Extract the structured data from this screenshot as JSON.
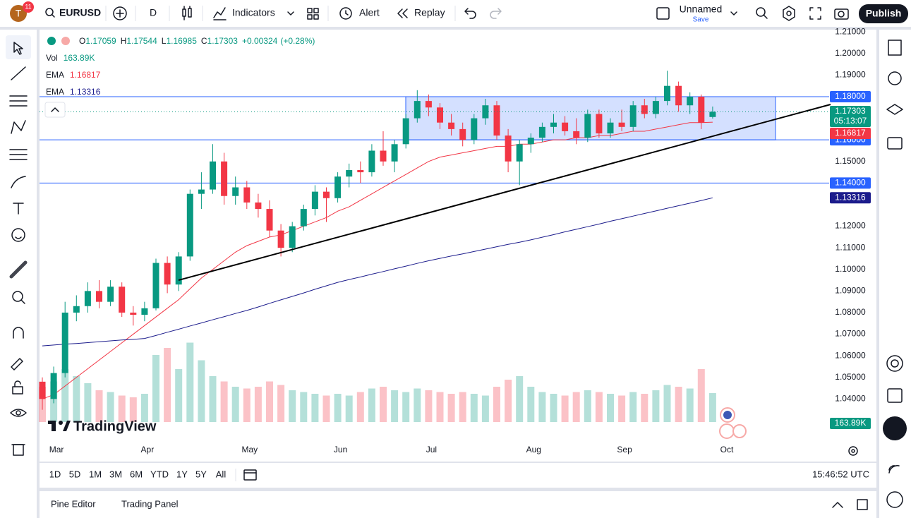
{
  "toolbar": {
    "avatar": "T",
    "badge": "11",
    "symbol": "EURUSD",
    "interval": "D",
    "indicators": "Indicators",
    "alert": "Alert",
    "replay": "Replay",
    "layout": "Unnamed",
    "save": "Save",
    "publish": "Publish"
  },
  "chart_data": {
    "type": "candlestick",
    "up_color": "#089981",
    "down_color": "#f23645",
    "change": "+0.00324",
    "change_pct": "(+0.28%)",
    "countdown": "05:13:07",
    "logo": "TradingView",
    "categories": [
      null,
      "Mar",
      null,
      null,
      null,
      null,
      null,
      null,
      null,
      "Apr",
      null,
      null,
      null,
      null,
      null,
      null,
      null,
      null,
      "May",
      null,
      null,
      null,
      null,
      null,
      null,
      null,
      "Jun",
      null,
      null,
      null,
      null,
      null,
      null,
      null,
      "Jul",
      null,
      null,
      null,
      null,
      null,
      null,
      null,
      null,
      "Aug",
      null,
      null,
      null,
      null,
      null,
      null,
      null,
      "Sep",
      null,
      null,
      null,
      null,
      null,
      null,
      null,
      null,
      "Oct"
    ],
    "candles": [
      {
        "o": 1.048,
        "h": 1.05,
        "l": 1.035,
        "c": 1.04
      },
      {
        "o": 1.04,
        "h": 1.055,
        "l": 1.038,
        "c": 1.052
      },
      {
        "o": 1.052,
        "h": 1.085,
        "l": 1.05,
        "c": 1.08
      },
      {
        "o": 1.08,
        "h": 1.088,
        "l": 1.076,
        "c": 1.083
      },
      {
        "o": 1.083,
        "h": 1.094,
        "l": 1.08,
        "c": 1.09
      },
      {
        "o": 1.09,
        "h": 1.095,
        "l": 1.082,
        "c": 1.085
      },
      {
        "o": 1.085,
        "h": 1.095,
        "l": 1.083,
        "c": 1.092
      },
      {
        "o": 1.092,
        "h": 1.094,
        "l": 1.078,
        "c": 1.08
      },
      {
        "o": 1.08,
        "h": 1.083,
        "l": 1.074,
        "c": 1.079
      },
      {
        "o": 1.079,
        "h": 1.085,
        "l": 1.076,
        "c": 1.082
      },
      {
        "o": 1.082,
        "h": 1.105,
        "l": 1.081,
        "c": 1.103
      },
      {
        "o": 1.103,
        "h": 1.106,
        "l": 1.089,
        "c": 1.093
      },
      {
        "o": 1.093,
        "h": 1.108,
        "l": 1.09,
        "c": 1.106
      },
      {
        "o": 1.106,
        "h": 1.137,
        "l": 1.104,
        "c": 1.135
      },
      {
        "o": 1.135,
        "h": 1.145,
        "l": 1.128,
        "c": 1.137
      },
      {
        "o": 1.137,
        "h": 1.158,
        "l": 1.135,
        "c": 1.15
      },
      {
        "o": 1.15,
        "h": 1.154,
        "l": 1.13,
        "c": 1.134
      },
      {
        "o": 1.134,
        "h": 1.143,
        "l": 1.13,
        "c": 1.138
      },
      {
        "o": 1.138,
        "h": 1.141,
        "l": 1.128,
        "c": 1.131
      },
      {
        "o": 1.131,
        "h": 1.135,
        "l": 1.124,
        "c": 1.128
      },
      {
        "o": 1.128,
        "h": 1.132,
        "l": 1.115,
        "c": 1.118
      },
      {
        "o": 1.118,
        "h": 1.121,
        "l": 1.106,
        "c": 1.11
      },
      {
        "o": 1.11,
        "h": 1.122,
        "l": 1.108,
        "c": 1.12
      },
      {
        "o": 1.12,
        "h": 1.13,
        "l": 1.118,
        "c": 1.128
      },
      {
        "o": 1.128,
        "h": 1.139,
        "l": 1.125,
        "c": 1.136
      },
      {
        "o": 1.136,
        "h": 1.138,
        "l": 1.122,
        "c": 1.133
      },
      {
        "o": 1.133,
        "h": 1.145,
        "l": 1.131,
        "c": 1.143
      },
      {
        "o": 1.143,
        "h": 1.149,
        "l": 1.138,
        "c": 1.146
      },
      {
        "o": 1.146,
        "h": 1.15,
        "l": 1.14,
        "c": 1.145
      },
      {
        "o": 1.145,
        "h": 1.158,
        "l": 1.143,
        "c": 1.155
      },
      {
        "o": 1.155,
        "h": 1.164,
        "l": 1.148,
        "c": 1.15
      },
      {
        "o": 1.15,
        "h": 1.16,
        "l": 1.145,
        "c": 1.158
      },
      {
        "o": 1.158,
        "h": 1.172,
        "l": 1.156,
        "c": 1.17
      },
      {
        "o": 1.17,
        "h": 1.183,
        "l": 1.168,
        "c": 1.178
      },
      {
        "o": 1.178,
        "h": 1.181,
        "l": 1.171,
        "c": 1.175
      },
      {
        "o": 1.175,
        "h": 1.177,
        "l": 1.165,
        "c": 1.168
      },
      {
        "o": 1.168,
        "h": 1.172,
        "l": 1.162,
        "c": 1.165
      },
      {
        "o": 1.165,
        "h": 1.168,
        "l": 1.157,
        "c": 1.16
      },
      {
        "o": 1.16,
        "h": 1.172,
        "l": 1.158,
        "c": 1.17
      },
      {
        "o": 1.17,
        "h": 1.179,
        "l": 1.167,
        "c": 1.176
      },
      {
        "o": 1.176,
        "h": 1.178,
        "l": 1.16,
        "c": 1.162
      },
      {
        "o": 1.162,
        "h": 1.165,
        "l": 1.145,
        "c": 1.15
      },
      {
        "o": 1.15,
        "h": 1.16,
        "l": 1.139,
        "c": 1.158
      },
      {
        "o": 1.158,
        "h": 1.163,
        "l": 1.154,
        "c": 1.161
      },
      {
        "o": 1.161,
        "h": 1.168,
        "l": 1.159,
        "c": 1.166
      },
      {
        "o": 1.166,
        "h": 1.172,
        "l": 1.163,
        "c": 1.168
      },
      {
        "o": 1.168,
        "h": 1.171,
        "l": 1.162,
        "c": 1.164
      },
      {
        "o": 1.164,
        "h": 1.17,
        "l": 1.158,
        "c": 1.161
      },
      {
        "o": 1.161,
        "h": 1.174,
        "l": 1.159,
        "c": 1.172
      },
      {
        "o": 1.172,
        "h": 1.174,
        "l": 1.161,
        "c": 1.163
      },
      {
        "o": 1.163,
        "h": 1.17,
        "l": 1.161,
        "c": 1.168
      },
      {
        "o": 1.168,
        "h": 1.174,
        "l": 1.164,
        "c": 1.166
      },
      {
        "o": 1.166,
        "h": 1.178,
        "l": 1.164,
        "c": 1.176
      },
      {
        "o": 1.176,
        "h": 1.179,
        "l": 1.17,
        "c": 1.172
      },
      {
        "o": 1.172,
        "h": 1.18,
        "l": 1.17,
        "c": 1.178
      },
      {
        "o": 1.178,
        "h": 1.192,
        "l": 1.176,
        "c": 1.185
      },
      {
        "o": 1.185,
        "h": 1.187,
        "l": 1.173,
        "c": 1.176
      },
      {
        "o": 1.176,
        "h": 1.182,
        "l": 1.172,
        "c": 1.18
      },
      {
        "o": 1.18,
        "h": 1.181,
        "l": 1.165,
        "c": 1.168
      },
      {
        "o": 1.17059,
        "h": 1.17544,
        "l": 1.16985,
        "c": 1.17303
      },
      null
    ],
    "volume": {
      "name": "Vol",
      "values": [
        200,
        230,
        300,
        260,
        220,
        180,
        170,
        150,
        140,
        160,
        380,
        420,
        300,
        450,
        350,
        260,
        230,
        200,
        190,
        200,
        230,
        210,
        180,
        170,
        160,
        150,
        160,
        150,
        170,
        190,
        200,
        180,
        170,
        190,
        180,
        170,
        160,
        170,
        160,
        150,
        200,
        240,
        260,
        200,
        170,
        160,
        150,
        170,
        180,
        170,
        160,
        150,
        170,
        160,
        180,
        210,
        200,
        190,
        300,
        163.89,
        null
      ],
      "value_label": "163.89K"
    },
    "series": [
      {
        "name": "EMA",
        "color": "#f23645",
        "values": [
          1.04,
          1.042,
          1.046,
          1.05,
          1.054,
          1.058,
          1.062,
          1.066,
          1.07,
          1.074,
          1.078,
          1.082,
          1.086,
          1.091,
          1.096,
          1.1,
          1.104,
          1.108,
          1.111,
          1.113,
          1.115,
          1.116,
          1.118,
          1.12,
          1.122,
          1.124,
          1.127,
          1.129,
          1.132,
          1.135,
          1.138,
          1.141,
          1.144,
          1.147,
          1.15,
          1.152,
          1.153,
          1.154,
          1.155,
          1.156,
          1.157,
          1.157,
          1.158,
          1.158,
          1.159,
          1.16,
          1.16,
          1.161,
          1.161,
          1.162,
          1.162,
          1.163,
          1.164,
          1.164,
          1.165,
          1.166,
          1.167,
          1.168,
          1.168,
          1.16817,
          null
        ]
      },
      {
        "name": "EMA",
        "color": "#1c1c8c",
        "values": [
          1.0646,
          1.065,
          1.0654,
          1.0657,
          1.0661,
          1.0665,
          1.0669,
          1.0673,
          1.0676,
          1.068,
          1.0694,
          1.0709,
          1.0723,
          1.0738,
          1.0752,
          1.0767,
          1.0781,
          1.0796,
          1.081,
          1.0826,
          1.0843,
          1.0859,
          1.0875,
          1.0891,
          1.0908,
          1.0924,
          1.094,
          1.0953,
          1.0965,
          1.0978,
          1.099,
          1.1003,
          1.1015,
          1.1028,
          1.104,
          1.1051,
          1.1062,
          1.1072,
          1.1083,
          1.1094,
          1.1105,
          1.1116,
          1.1126,
          1.1137,
          1.1149,
          1.1161,
          1.1174,
          1.1186,
          1.1198,
          1.121,
          1.1223,
          1.1235,
          1.1247,
          1.1259,
          1.1271,
          1.1283,
          1.1295,
          1.1307,
          1.1319,
          1.13316,
          null
        ]
      }
    ],
    "levels": [
      {
        "value": 1.18,
        "label": "1.18000"
      },
      {
        "value": 1.16,
        "label": "1.16000"
      },
      {
        "value": 1.14,
        "label": "1.14000"
      }
    ],
    "level_color": "#2962ff",
    "ylim": [
      1.0205,
      1.2117
    ],
    "yticks": [
      {
        "value": 1.21,
        "label": "1.21000"
      },
      {
        "value": 1.2,
        "label": "1.20000"
      },
      {
        "value": 1.19,
        "label": "1.19000"
      },
      {
        "value": 1.15,
        "label": "1.15000"
      },
      {
        "value": 1.12,
        "label": "1.12000"
      },
      {
        "value": 1.11,
        "label": "1.11000"
      },
      {
        "value": 1.1,
        "label": "1.10000"
      },
      {
        "value": 1.09,
        "label": "1.09000"
      },
      {
        "value": 1.08,
        "label": "1.08000"
      },
      {
        "value": 1.07,
        "label": "1.07000"
      },
      {
        "value": 1.06,
        "label": "1.06000"
      },
      {
        "value": 1.05,
        "label": "1.05000"
      },
      {
        "value": 1.04,
        "label": "1.04000"
      }
    ]
  },
  "range_bar": {
    "ranges": [
      "1D",
      "5D",
      "1M",
      "3M",
      "6M",
      "YTD",
      "1Y",
      "5Y",
      "All"
    ],
    "clock": "15:46:52 UTC"
  },
  "footer": {
    "tabs": [
      "Pine Editor",
      "Trading Panel"
    ]
  }
}
